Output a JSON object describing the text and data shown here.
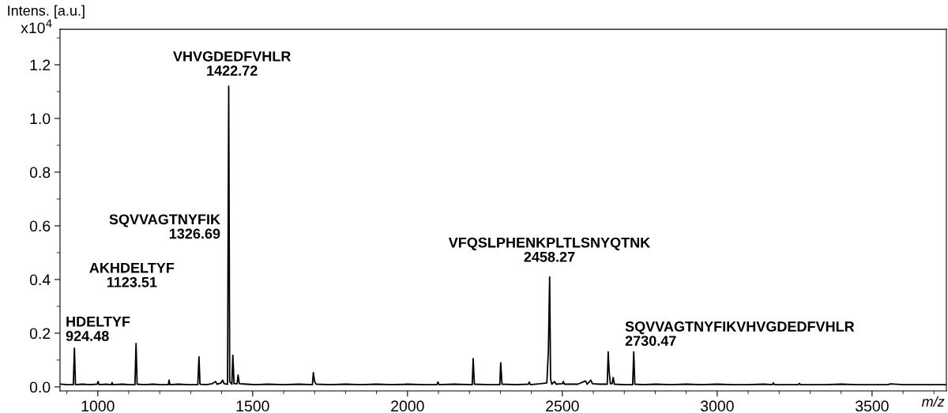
{
  "chart_data": {
    "type": "line",
    "xlabel": "m/z",
    "ylabel": "Intens. [a.u.]",
    "xlim": [
      878,
      3740
    ],
    "ylim": [
      -0.015,
      1.332
    ],
    "xticks": [
      1000,
      1500,
      2000,
      2500,
      3000,
      3500
    ],
    "yticks": [
      {
        "value": 0,
        "label": "0.0"
      },
      {
        "value": 0.2,
        "label": "0.2"
      },
      {
        "value": 0.4,
        "label": "0.4"
      },
      {
        "value": 0.6,
        "label": "0.6"
      },
      {
        "value": 0.8,
        "label": "0.8"
      },
      {
        "value": 1.0,
        "label": "1.0"
      },
      {
        "value": 1.2,
        "label": "1.2"
      }
    ],
    "grid": false,
    "marker": "none",
    "line_style": "solid",
    "series": [
      {
        "color": "#000000",
        "x": [
          880,
          900,
          921,
          924.5,
          928,
          950,
          975,
          998,
          1001,
          1004,
          1030,
          1044,
          1046,
          1049,
          1080,
          1100,
          1120,
          1123.5,
          1127,
          1150,
          1180,
          1200,
          1228,
          1230,
          1233,
          1260,
          1290,
          1323,
          1326.7,
          1330,
          1350,
          1370,
          1380,
          1385,
          1398,
          1403,
          1408,
          1419,
          1422.7,
          1426,
          1433,
          1436,
          1440,
          1450,
          1453,
          1457,
          1480,
          1510,
          1550,
          1600,
          1650,
          1693,
          1696,
          1700,
          1705,
          1750,
          1800,
          1850,
          1900,
          1950,
          2000,
          2050,
          2095,
          2098,
          2102,
          2150,
          2209,
          2212,
          2216,
          2260,
          2298,
          2301,
          2305,
          2350,
          2390,
          2393,
          2397,
          2430,
          2450,
          2455,
          2459,
          2462,
          2466,
          2475,
          2480,
          2500,
          2503,
          2507,
          2550,
          2575,
          2580,
          2592,
          2597,
          2620,
          2645,
          2648,
          2651,
          2655,
          2661,
          2664,
          2668,
          2700,
          2727,
          2730.5,
          2734,
          2760,
          2800,
          2850,
          2900,
          2950,
          3000,
          3050,
          3100,
          3150,
          3178,
          3181,
          3185,
          3230,
          3262,
          3265,
          3269,
          3300,
          3350,
          3400,
          3450,
          3500,
          3550,
          3560,
          3600,
          3650,
          3700,
          3740
        ],
        "values": [
          0.01,
          0.008,
          0.008,
          0.144,
          0.008,
          0.01,
          0.008,
          0.01,
          0.02,
          0.008,
          0.01,
          0.008,
          0.016,
          0.008,
          0.01,
          0.008,
          0.008,
          0.162,
          0.01,
          0.008,
          0.01,
          0.008,
          0.008,
          0.025,
          0.008,
          0.01,
          0.008,
          0.008,
          0.112,
          0.01,
          0.008,
          0.012,
          0.02,
          0.01,
          0.015,
          0.025,
          0.012,
          0.01,
          1.12,
          0.02,
          0.01,
          0.118,
          0.012,
          0.012,
          0.044,
          0.012,
          0.01,
          0.008,
          0.01,
          0.008,
          0.01,
          0.008,
          0.053,
          0.02,
          0.01,
          0.008,
          0.01,
          0.008,
          0.01,
          0.008,
          0.01,
          0.008,
          0.008,
          0.018,
          0.008,
          0.01,
          0.008,
          0.105,
          0.01,
          0.008,
          0.008,
          0.09,
          0.01,
          0.008,
          0.01,
          0.018,
          0.008,
          0.012,
          0.015,
          0.137,
          0.41,
          0.03,
          0.01,
          0.02,
          0.01,
          0.012,
          0.02,
          0.01,
          0.01,
          0.022,
          0.01,
          0.025,
          0.012,
          0.01,
          0.01,
          0.13,
          0.06,
          0.012,
          0.012,
          0.035,
          0.01,
          0.008,
          0.008,
          0.13,
          0.01,
          0.008,
          0.01,
          0.008,
          0.01,
          0.008,
          0.01,
          0.008,
          0.008,
          0.01,
          0.008,
          0.015,
          0.008,
          0.008,
          0.008,
          0.013,
          0.008,
          0.008,
          0.008,
          0.01,
          0.008,
          0.008,
          0.008,
          0.011,
          0.008,
          0.008,
          0.008,
          0.008
        ]
      }
    ],
    "annotations": [
      "x10$^{4}$",
      {
        "text": "HDELTYF\n924.48",
        "x": 924.48,
        "y": 0.144
      },
      "AKHDELTYF\n1123.51",
      "SQVVAGTNYFIK\n1326.69",
      {
        "text": "VHVGDEDFVHLR\n1422.72",
        "x": 1422.72,
        "y": 1.12
      },
      {
        "text": "VFQSLPHENKPLTLSNYQTNK\n2458.27",
        "x": 2458.27,
        "y": 0.41
      },
      {
        "text": "SQVVAGTNYFIKVHVGDEDFVHLR\n2730.47",
        "x": 2730.47,
        "y": 0.13
      }
    ]
  }
}
